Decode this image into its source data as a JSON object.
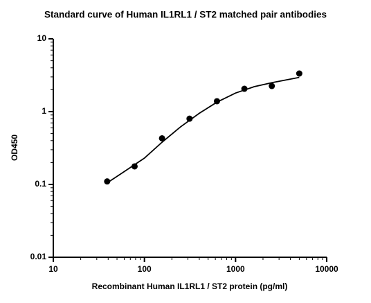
{
  "chart_data": {
    "type": "scatter",
    "title": "Standard curve of Human IL1RL1 / ST2 matched pair antibodies",
    "x_label": "Recombinant Human IL1RL1 / ST2 protein (pg/ml)",
    "y_label": "OD450",
    "x_scale": "log",
    "y_scale": "log",
    "xlim": [
      10,
      10000
    ],
    "ylim": [
      0.01,
      10
    ],
    "xticks": [
      10,
      100,
      1000,
      10000
    ],
    "yticks": [
      0.01,
      0.1,
      1,
      10
    ],
    "color": "#000000",
    "x": [
      39,
      78,
      156,
      312.5,
      625,
      1250,
      2500,
      5000
    ],
    "values": [
      0.11,
      0.177,
      0.43,
      0.8,
      1.39,
      2.06,
      2.25,
      3.34
    ],
    "curve": {
      "x": [
        39,
        60,
        100,
        156,
        250,
        400,
        625,
        1000,
        1600,
        2500,
        5000
      ],
      "values": [
        0.105,
        0.15,
        0.23,
        0.38,
        0.62,
        0.95,
        1.35,
        1.8,
        2.2,
        2.5,
        2.95
      ]
    }
  }
}
